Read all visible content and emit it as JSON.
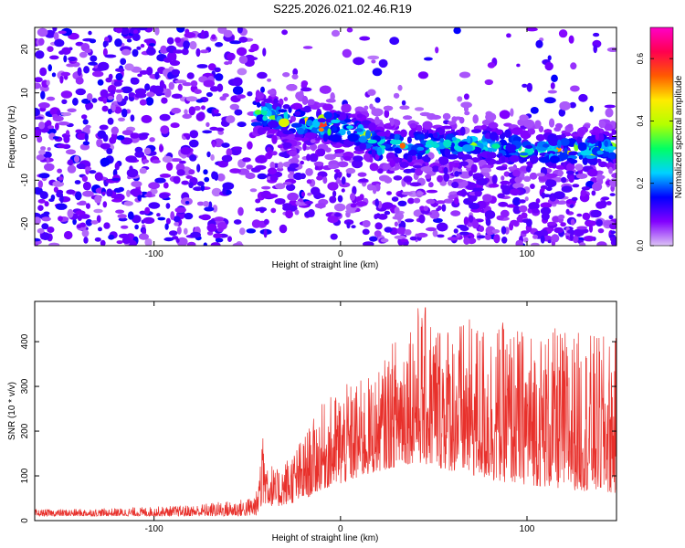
{
  "title": "S225.2026.021.02.46.R19",
  "chart_data": [
    {
      "type": "heatmap",
      "name": "spectrogram",
      "xlabel": "Height of straight line (km)",
      "ylabel": "Frequency (Hz)",
      "xlim": [
        -164,
        148
      ],
      "ylim": [
        -25,
        25
      ],
      "xticks": [
        -100,
        0,
        100
      ],
      "xtick_labels": [
        "-100",
        "0",
        "100"
      ],
      "yticks": [
        -20,
        -10,
        0,
        10,
        20
      ],
      "ytick_labels": [
        "-20",
        "-10",
        "0",
        "10",
        "20"
      ],
      "ridge_profile": {
        "x": [
          -164,
          -100,
          -60,
          -40,
          -20,
          -15,
          0,
          10,
          20,
          40,
          60,
          80,
          100,
          120,
          148
        ],
        "y": [
          6,
          6,
          6,
          5,
          3,
          3,
          2,
          1,
          -2,
          -2,
          -2,
          -2,
          -3,
          -3,
          -3
        ]
      },
      "colorbar": {
        "label": "Normalized spectral amplitude",
        "range": [
          0,
          0.7
        ],
        "ticks": [
          "0.0",
          "0.2",
          "0.4",
          "0.6"
        ],
        "colormap": [
          "#dcc3f5",
          "#8200ff",
          "#0000ff",
          "#00d2ff",
          "#00ff64",
          "#b4ff00",
          "#ffeb00",
          "#ff5a00",
          "#ff0050",
          "#ff00c8"
        ]
      }
    },
    {
      "type": "line",
      "name": "snr",
      "xlabel": "Height of straight line (km)",
      "ylabel": "SNR (10 * v/v)",
      "xlim": [
        -164,
        148
      ],
      "ylim": [
        0,
        490
      ],
      "xticks": [
        -100,
        0,
        100
      ],
      "xtick_labels": [
        "-100",
        "0",
        "100"
      ],
      "yticks": [
        0,
        100,
        200,
        300,
        400
      ],
      "ytick_labels": [
        "0",
        "100",
        "200",
        "300",
        "400"
      ],
      "color": "#e8302b",
      "envelope": {
        "x": [
          -164,
          -120,
          -80,
          -50,
          -44,
          -42,
          -35,
          -20,
          -10,
          0,
          20,
          30,
          40,
          60,
          80,
          100,
          120,
          148
        ],
        "low": [
          10,
          10,
          10,
          10,
          12,
          40,
          30,
          45,
          70,
          80,
          110,
          120,
          130,
          110,
          90,
          80,
          70,
          60
        ],
        "high": [
          25,
          28,
          35,
          50,
          70,
          190,
          110,
          190,
          260,
          300,
          330,
          420,
          490,
          450,
          450,
          430,
          430,
          410
        ]
      }
    }
  ]
}
